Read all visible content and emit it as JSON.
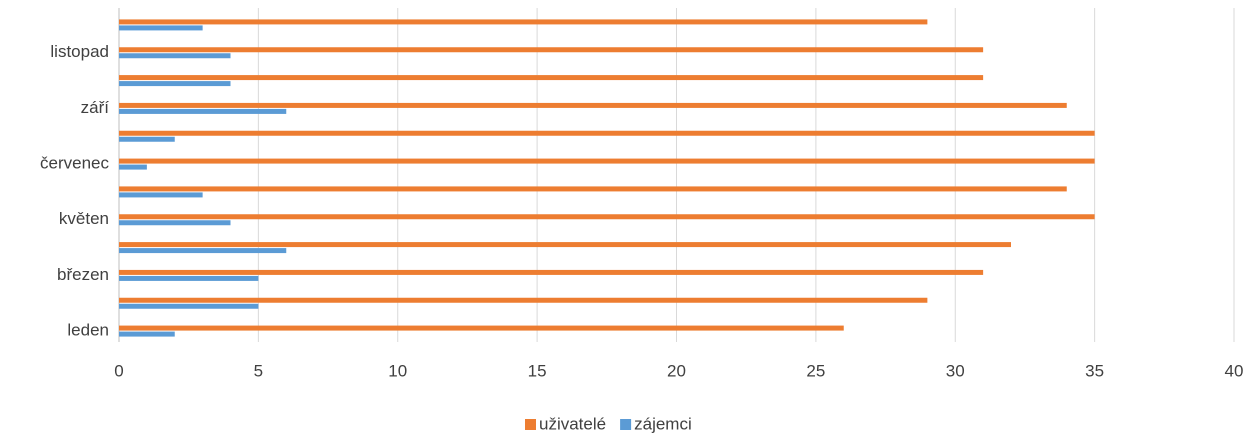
{
  "chart_data": {
    "type": "bar",
    "orientation": "horizontal",
    "categories": [
      "leden",
      null,
      "březen",
      null,
      "květen",
      null,
      "červenec",
      null,
      "září",
      null,
      "listopad",
      null
    ],
    "series": [
      {
        "name": "uživatelé",
        "color": "#ed7d31",
        "values": [
          26,
          29,
          31,
          32,
          35,
          34,
          35,
          35,
          34,
          31,
          31,
          29
        ]
      },
      {
        "name": "zájemci",
        "color": "#5b9bd5",
        "values": [
          2,
          5,
          5,
          6,
          4,
          3,
          1,
          2,
          6,
          4,
          4,
          3
        ]
      }
    ],
    "xlim": [
      0,
      40
    ],
    "xticks": [
      0,
      5,
      10,
      15,
      20,
      25,
      30,
      35,
      40
    ],
    "grid": true,
    "legend": "bottom"
  }
}
